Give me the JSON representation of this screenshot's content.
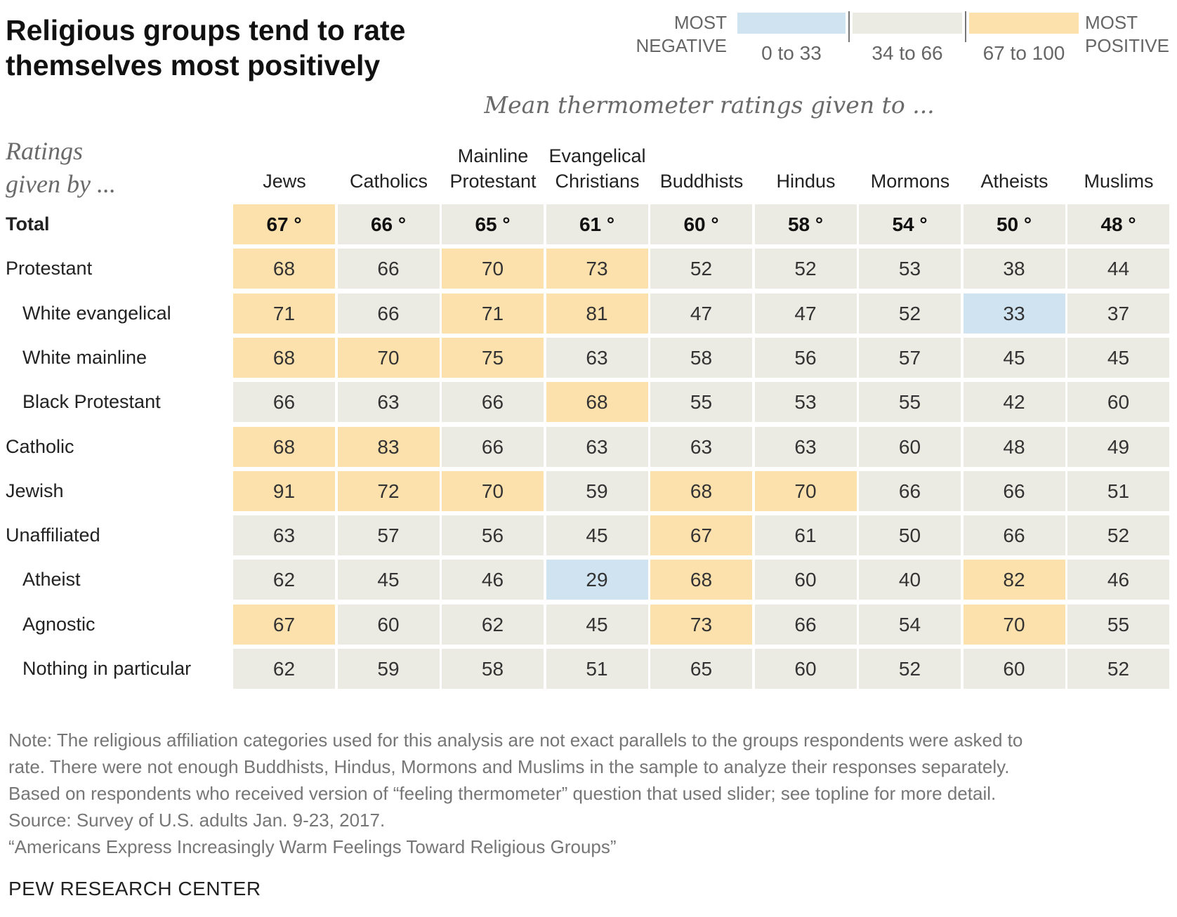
{
  "title_lines": [
    "Religious groups tend to rate",
    "themselves most positively"
  ],
  "subtitle": "Mean thermometer ratings given to ...",
  "row_header_lines": [
    "Ratings",
    "given by ..."
  ],
  "legend": {
    "negative_label_lines": [
      "MOST",
      "NEGATIVE"
    ],
    "positive_label_lines": [
      "MOST",
      "POSITIVE"
    ],
    "ranges": [
      {
        "label": "0 to 33",
        "color": "#cfe3f1"
      },
      {
        "label": "34 to 66",
        "color": "#ebebe3"
      },
      {
        "label": "67 to 100",
        "color": "#fde1ad"
      }
    ]
  },
  "colors": {
    "low": "#cfe3f1",
    "mid": "#ebebe3",
    "high": "#fde1ad"
  },
  "degree_symbol": "°",
  "chart_data": {
    "type": "table",
    "title": "Religious groups tend to rate themselves most positively",
    "subtitle": "Mean thermometer ratings given to ...",
    "thresholds": {
      "low_max": 33,
      "high_min": 67
    },
    "columns": [
      [
        "Jews"
      ],
      [
        "Catholics"
      ],
      [
        "Mainline",
        "Protestant"
      ],
      [
        "Evangelical",
        "Christians"
      ],
      [
        "Buddhists"
      ],
      [
        "Hindus"
      ],
      [
        "Mormons"
      ],
      [
        "Atheists"
      ],
      [
        "Muslims"
      ]
    ],
    "rows": [
      {
        "label": "Total",
        "indent": false,
        "total": true,
        "values": [
          67,
          66,
          65,
          61,
          60,
          58,
          54,
          50,
          48
        ]
      },
      {
        "label": "Protestant",
        "indent": false,
        "total": false,
        "values": [
          68,
          66,
          70,
          73,
          52,
          52,
          53,
          38,
          44
        ]
      },
      {
        "label": "White evangelical",
        "indent": true,
        "total": false,
        "values": [
          71,
          66,
          71,
          81,
          47,
          47,
          52,
          33,
          37
        ]
      },
      {
        "label": "White mainline",
        "indent": true,
        "total": false,
        "values": [
          68,
          70,
          75,
          63,
          58,
          56,
          57,
          45,
          45
        ]
      },
      {
        "label": "Black Protestant",
        "indent": true,
        "total": false,
        "values": [
          66,
          63,
          66,
          68,
          55,
          53,
          55,
          42,
          60
        ]
      },
      {
        "label": "Catholic",
        "indent": false,
        "total": false,
        "values": [
          68,
          83,
          66,
          63,
          63,
          63,
          60,
          48,
          49
        ]
      },
      {
        "label": "Jewish",
        "indent": false,
        "total": false,
        "values": [
          91,
          72,
          70,
          59,
          68,
          70,
          66,
          66,
          51
        ]
      },
      {
        "label": "Unaffiliated",
        "indent": false,
        "total": false,
        "values": [
          63,
          57,
          56,
          45,
          67,
          61,
          50,
          66,
          52
        ]
      },
      {
        "label": "Atheist",
        "indent": true,
        "total": false,
        "values": [
          62,
          45,
          46,
          29,
          68,
          60,
          40,
          82,
          46
        ]
      },
      {
        "label": "Agnostic",
        "indent": true,
        "total": false,
        "values": [
          67,
          60,
          62,
          45,
          73,
          66,
          54,
          70,
          55
        ]
      },
      {
        "label": "Nothing in particular",
        "indent": true,
        "total": false,
        "values": [
          62,
          59,
          58,
          51,
          65,
          60,
          52,
          60,
          52
        ]
      }
    ]
  },
  "notes": [
    "Note: The religious affiliation categories used for this analysis are not exact parallels to the groups respondents were asked to",
    "rate. There were not enough Buddhists, Hindus, Mormons and Muslims in the sample to analyze their responses separately.",
    "Based on respondents who received version of “feeling thermometer” question that used slider; see topline for more detail.",
    "Source: Survey of U.S. adults Jan. 9-23, 2017.",
    "“Americans Express Increasingly Warm Feelings Toward Religious Groups”"
  ],
  "brand": "PEW RESEARCH CENTER"
}
